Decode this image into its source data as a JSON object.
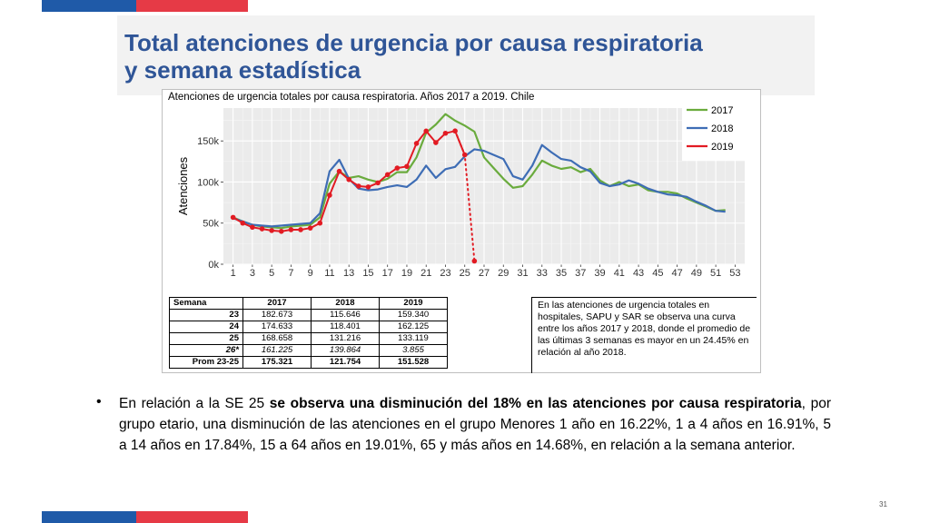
{
  "colors": {
    "blue_bar": "#1f5aa8",
    "red_bar": "#e63a46",
    "title": "#2f5597"
  },
  "slide": {
    "title_line1": "Total atenciones de urgencia por causa respiratoria",
    "title_line2": "y semana estadística",
    "page_number": "31"
  },
  "table": {
    "headers": [
      "Semana",
      "2017",
      "2018",
      "2019"
    ],
    "rows": [
      [
        "23",
        "182.673",
        "115.646",
        "159.340"
      ],
      [
        "24",
        "174.633",
        "118.401",
        "162.125"
      ],
      [
        "25",
        "168.658",
        "131.216",
        "133.119"
      ],
      [
        "26*",
        "161.225",
        "139.864",
        "3.855"
      ],
      [
        "Prom 23-25",
        "175.321",
        "121.754",
        "151.528"
      ]
    ]
  },
  "note": "En las atenciones de urgencia totales en hospitales, SAPU y SAR se observa una curva entre los años 2017 y 2018, donde el promedio de las últimas 3 semanas es mayor en un 24.45% en relación al año 2018.",
  "body": {
    "bullet": "•",
    "pre": "En relación a la SE 25 ",
    "bold": "se observa una disminución del 18% en las atenciones por causa respiratoria",
    "post": ", por grupo etario, una disminución de las atenciones en el grupo Menores 1 año en 16.22%, 1 a 4 años en 16.91%, 5 a 14 años en 17.84%, 15 a 64 años en 19.01%, 65 y más años en 14.68%, en relación a la semana anterior."
  },
  "chart_data": {
    "type": "line",
    "title": "Atenciones de urgencia totales por causa respiratoria. Años 2017 a 2019. Chile",
    "xlabel": "",
    "ylabel": "Atenciones",
    "xlim": [
      0,
      54
    ],
    "ylim": [
      0,
      190000
    ],
    "x_ticks": [
      1,
      3,
      5,
      7,
      9,
      11,
      13,
      15,
      17,
      19,
      21,
      23,
      25,
      27,
      29,
      31,
      33,
      35,
      37,
      39,
      41,
      43,
      45,
      47,
      49,
      51,
      53
    ],
    "y_ticks": [
      0,
      50000,
      100000,
      150000
    ],
    "y_tick_labels": [
      "0k",
      "50k",
      "100k",
      "150k"
    ],
    "grid": true,
    "legend_position": "top-right",
    "series": [
      {
        "name": "2017",
        "color": "#6aab3d",
        "style": "solid",
        "x": [
          1,
          2,
          3,
          4,
          5,
          6,
          7,
          8,
          9,
          10,
          11,
          12,
          13,
          14,
          15,
          16,
          17,
          18,
          19,
          20,
          21,
          22,
          23,
          24,
          25,
          26,
          27,
          28,
          29,
          30,
          31,
          32,
          33,
          34,
          35,
          36,
          37,
          38,
          39,
          40,
          41,
          42,
          43,
          44,
          45,
          46,
          47,
          48,
          49,
          50,
          51,
          52
        ],
        "y": [
          57000,
          52000,
          48000,
          46000,
          45000,
          44000,
          46000,
          47000,
          48000,
          57000,
          98000,
          113000,
          105000,
          107000,
          103000,
          100000,
          104000,
          112000,
          112000,
          130000,
          160000,
          170000,
          182673,
          174633,
          168658,
          161225,
          130000,
          117000,
          104000,
          93000,
          95000,
          109000,
          126000,
          120000,
          116000,
          118000,
          112000,
          116000,
          102000,
          95000,
          100000,
          95000,
          97000,
          90000,
          88000,
          88000,
          86000,
          80000,
          75000,
          70000,
          65000,
          66000
        ]
      },
      {
        "name": "2018",
        "color": "#3e6db5",
        "style": "solid",
        "x": [
          1,
          2,
          3,
          4,
          5,
          6,
          7,
          8,
          9,
          10,
          11,
          12,
          13,
          14,
          15,
          16,
          17,
          18,
          19,
          20,
          21,
          22,
          23,
          24,
          25,
          26,
          27,
          28,
          29,
          30,
          31,
          32,
          33,
          34,
          35,
          36,
          37,
          38,
          39,
          40,
          41,
          42,
          43,
          44,
          45,
          46,
          47,
          48,
          49,
          50,
          51,
          52
        ],
        "y": [
          56000,
          52000,
          48000,
          47000,
          46000,
          47000,
          48000,
          49000,
          50000,
          62000,
          113000,
          127000,
          104000,
          92000,
          90000,
          91000,
          94000,
          96000,
          94000,
          103000,
          120000,
          105000,
          115646,
          118401,
          131216,
          139864,
          138000,
          133000,
          128000,
          107000,
          103000,
          120000,
          145000,
          136000,
          128000,
          126000,
          118000,
          113000,
          99000,
          95000,
          97000,
          102000,
          98000,
          92000,
          88000,
          85000,
          84000,
          82000,
          76000,
          71000,
          65000,
          64000
        ]
      },
      {
        "name": "2019",
        "color": "#e21b23",
        "style": "solid",
        "x": [
          1,
          2,
          3,
          4,
          5,
          6,
          7,
          8,
          9,
          10,
          11,
          12,
          13,
          14,
          15,
          16,
          17,
          18,
          19,
          20,
          21,
          22,
          23,
          24,
          25
        ],
        "y": [
          57000,
          50000,
          45000,
          43000,
          41000,
          40000,
          42000,
          42000,
          44000,
          50000,
          84000,
          113000,
          103000,
          95000,
          94000,
          99000,
          109000,
          117000,
          119000,
          147000,
          162000,
          148000,
          159340,
          162125,
          133119
        ]
      },
      {
        "name": "",
        "color": "#e21b23",
        "style": "dotted",
        "x": [
          24,
          25,
          26
        ],
        "y": [
          162125,
          133119,
          3855
        ]
      }
    ]
  }
}
